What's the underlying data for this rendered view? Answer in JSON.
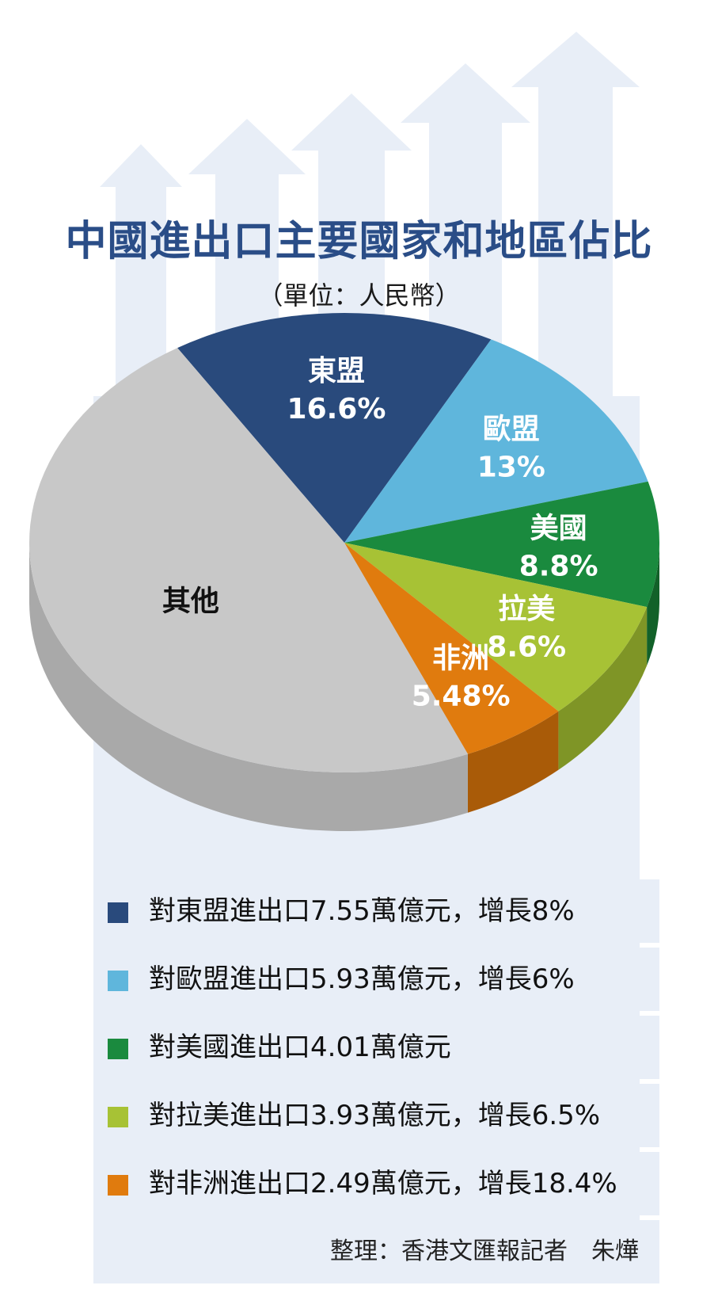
{
  "chart_data": {
    "type": "pie",
    "title": "中國進出口主要國家和地區佔比",
    "subtitle": "（單位：人民幣）",
    "slices": [
      {
        "name": "東盟",
        "value_label": "16.6%",
        "value": 16.6,
        "color": "#294a7c",
        "side": "#1d375e"
      },
      {
        "name": "歐盟",
        "value_label": "13%",
        "value": 13,
        "color": "#5fb6dc",
        "side": "#3f8aa8"
      },
      {
        "name": "美國",
        "value_label": "8.8%",
        "value": 8.8,
        "color": "#1a8a3e",
        "side": "#126129"
      },
      {
        "name": "拉美",
        "value_label": "8.6%",
        "value": 8.6,
        "color": "#a7c235",
        "side": "#7f9526"
      },
      {
        "name": "非洲",
        "value_label": "5.48%",
        "value": 5.48,
        "color": "#e07b0e",
        "side": "#a95b08"
      },
      {
        "name": "其他",
        "value_label": "",
        "value": 47.52,
        "color": "#c8c8c8",
        "side": "#a9a9a9"
      }
    ],
    "legend": [
      {
        "text": "對東盟進出口7.55萬億元，增長8%",
        "color": "#294a7c"
      },
      {
        "text": "對歐盟進出口5.93萬億元，增長6%",
        "color": "#5fb6dc"
      },
      {
        "text": "對美國進出口4.01萬億元",
        "color": "#1a8a3e"
      },
      {
        "text": "對拉美進出口3.93萬億元，增長6.5%",
        "color": "#a7c235"
      },
      {
        "text": "對非洲進出口2.49萬億元，增長18.4%",
        "color": "#e07b0e"
      }
    ]
  },
  "credit": "整理：香港文匯報記者　朱燁",
  "colors": {
    "title": "#2a4d87",
    "background_arrows": "#e8eef7",
    "legend_background": "#e8eef7"
  }
}
